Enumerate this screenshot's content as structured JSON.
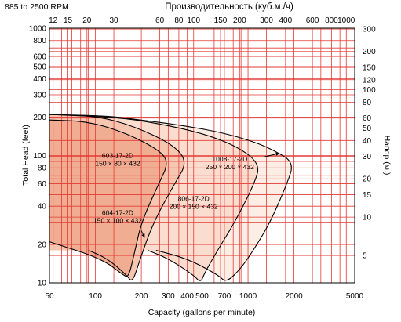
{
  "chart_data": {
    "type": "area",
    "subtitle": "885 to 2500 RPM",
    "xlabel": "Capacity (gallons per minute)",
    "ylabel": "Total Head (feet)",
    "x2label": "Производительность (куб.м./ч)",
    "y2label": "Напор (м.)",
    "x_scale": "log",
    "y_scale": "log",
    "xlim": [
      50,
      5000
    ],
    "ylim": [
      10,
      1000
    ],
    "grid": true,
    "colors": {
      "grid": "#e23a35",
      "outline": "#000000"
    },
    "x_ticks": [
      {
        "value": 50,
        "label": "50"
      },
      {
        "value": 100,
        "label": "100"
      },
      {
        "value": 200,
        "label": "200"
      },
      {
        "value": 300,
        "label": "300"
      },
      {
        "value": 400,
        "label": "400"
      },
      {
        "value": 500,
        "label": "500"
      },
      {
        "value": 700,
        "label": "700"
      },
      {
        "value": 1000,
        "label": "1000"
      },
      {
        "value": 2000,
        "label": "2000"
      },
      {
        "value": 5000,
        "label": "5000"
      }
    ],
    "x2_ticks": [
      {
        "value": 12,
        "label": "12"
      },
      {
        "value": 15,
        "label": "15"
      },
      {
        "value": 20,
        "label": "20"
      },
      {
        "value": 30,
        "label": "30"
      },
      {
        "value": 60,
        "label": "60"
      },
      {
        "value": 80,
        "label": "80"
      },
      {
        "value": 100,
        "label": "100"
      },
      {
        "value": 150,
        "label": "150"
      },
      {
        "value": 200,
        "label": "200"
      },
      {
        "value": 300,
        "label": "300"
      },
      {
        "value": 400,
        "label": "400"
      },
      {
        "value": 600,
        "label": "600"
      },
      {
        "value": 800,
        "label": "800"
      },
      {
        "value": 1000,
        "label": "1000"
      }
    ],
    "y_ticks": [
      {
        "value": 10,
        "label": "10"
      },
      {
        "value": 20,
        "label": "20"
      },
      {
        "value": 40,
        "label": "40"
      },
      {
        "value": 60,
        "label": "60"
      },
      {
        "value": 80,
        "label": "80"
      },
      {
        "value": 100,
        "label": "100"
      },
      {
        "value": 200,
        "label": "200"
      },
      {
        "value": 300,
        "label": "300"
      },
      {
        "value": 400,
        "label": "400"
      },
      {
        "value": 500,
        "label": "500"
      },
      {
        "value": 600,
        "label": "600"
      },
      {
        "value": 800,
        "label": "800"
      },
      {
        "value": 1000,
        "label": "1000"
      }
    ],
    "y2_ticks": [
      {
        "value": 5,
        "label": "5"
      },
      {
        "value": 10,
        "label": "10"
      },
      {
        "value": 15,
        "label": "15"
      },
      {
        "value": 20,
        "label": "20"
      },
      {
        "value": 30,
        "label": "30"
      },
      {
        "value": 40,
        "label": "40"
      },
      {
        "value": 50,
        "label": "50"
      },
      {
        "value": 60,
        "label": "60"
      },
      {
        "value": 80,
        "label": "80"
      },
      {
        "value": 100,
        "label": "100"
      },
      {
        "value": 120,
        "label": "120"
      },
      {
        "value": 150,
        "label": "150"
      },
      {
        "value": 200,
        "label": "200"
      },
      {
        "value": 300,
        "label": "300"
      }
    ],
    "series": [
      {
        "name": "1008-17-2D 250 × 200 × 432",
        "color": "#fdeee5",
        "top_left_head": 210,
        "outline": [
          [
            50,
            210
          ],
          [
            120,
            205
          ],
          [
            200,
            190
          ],
          [
            400,
            170
          ],
          [
            700,
            150
          ],
          [
            1100,
            128
          ],
          [
            1500,
            109
          ],
          [
            2000,
            88
          ],
          [
            1800,
            60
          ],
          [
            1400,
            30
          ],
          [
            1100,
            18.5
          ],
          [
            900,
            13
          ],
          [
            720,
            10
          ],
          [
            640,
            11.5
          ],
          [
            400,
            15.5
          ],
          [
            250,
            18
          ]
        ]
      },
      {
        "name": "806-17-2D 200 × 150 × 432",
        "color": "#fbddd0",
        "top_left_head": 210,
        "outline": [
          [
            50,
            210
          ],
          [
            140,
            200
          ],
          [
            260,
            178
          ],
          [
            500,
            150
          ],
          [
            850,
            118
          ],
          [
            1200,
            86
          ],
          [
            1100,
            60
          ],
          [
            820,
            30
          ],
          [
            640,
            18.5
          ],
          [
            520,
            12
          ],
          [
            490,
            10
          ],
          [
            440,
            11.5
          ],
          [
            300,
            15.5
          ],
          [
            220,
            18
          ]
        ]
      },
      {
        "name": "604-17-2D 150 × 100 × 432",
        "color": "#f6c6b0",
        "top_left_head": 210,
        "outline": [
          [
            50,
            210
          ],
          [
            100,
            205
          ],
          [
            180,
            170
          ],
          [
            330,
            120
          ],
          [
            400,
            88
          ],
          [
            330,
            60
          ],
          [
            240,
            30
          ],
          [
            195,
            15
          ],
          [
            175,
            10
          ],
          [
            160,
            11.5
          ],
          [
            120,
            15.5
          ],
          [
            90,
            18
          ]
        ]
      },
      {
        "name": "603-17-2D 150 × 80 × 432",
        "color": "#f1ad92",
        "top_left_head": 190,
        "outline": [
          [
            50,
            190
          ],
          [
            90,
            185
          ],
          [
            160,
            150
          ],
          [
            270,
            108
          ],
          [
            300,
            86
          ],
          [
            260,
            60
          ],
          [
            200,
            30
          ],
          [
            180,
            17
          ],
          [
            165,
            11
          ],
          [
            152,
            11.5
          ],
          [
            110,
            15.5
          ],
          [
            50,
            21
          ]
        ]
      }
    ],
    "labels": [
      {
        "series": "603-17-2D",
        "text": [
          "603-17-2D",
          "150 × 80 × 432"
        ]
      },
      {
        "series": "604-17-2D",
        "text": [
          "604-17-2D",
          "150 × 100 × 432"
        ]
      },
      {
        "series": "806-17-2D",
        "text": [
          "806-17-2D",
          "200 × 150 × 432"
        ]
      },
      {
        "series": "1008-17-2D",
        "text": [
          "1008-17-2D",
          "250 × 200 × 432"
        ]
      }
    ]
  }
}
